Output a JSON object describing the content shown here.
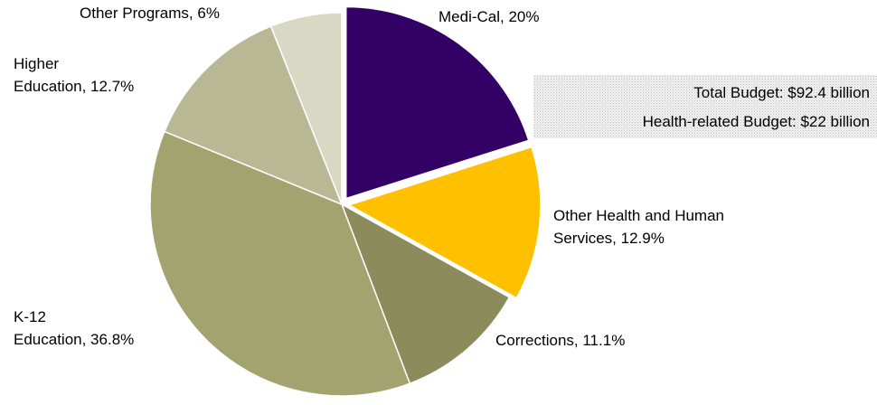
{
  "chart_data": {
    "type": "pie",
    "categories": [
      "Medi-Cal, 20%",
      "Other Health and Human Services, 12.9%",
      "Corrections, 11.1%",
      "K-12 Education, 36.8%",
      "Higher Education, 12.7%",
      "Other Programs, 6%"
    ],
    "values": [
      20,
      12.9,
      11.1,
      36.8,
      12.7,
      6
    ],
    "colors": [
      "#330066",
      "#ffc000",
      "#8b8b5b",
      "#a3a370",
      "#b8b894",
      "#d9d8c4"
    ],
    "exploded": [
      true,
      true,
      false,
      false,
      false,
      false
    ],
    "annotations": [
      "Total Budget: $92.4 billion",
      "Health-related Budget: $22 billion"
    ]
  }
}
